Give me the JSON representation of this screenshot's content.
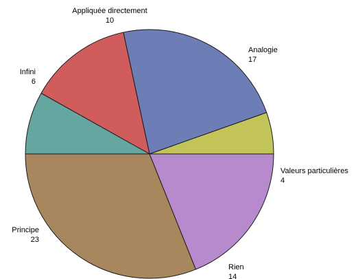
{
  "chart_data": {
    "type": "pie",
    "title": "",
    "start_angle_deg": 0,
    "direction": "counterclockwise",
    "slices": [
      {
        "label": "Valeurs particulières",
        "value": 4,
        "color": "#c2c45a"
      },
      {
        "label": "Analogie",
        "value": 17,
        "color": "#6d7db5"
      },
      {
        "label": "Appliquée directement",
        "value": 10,
        "color": "#d15c5c"
      },
      {
        "label": "Infini",
        "value": 6,
        "color": "#66a6a0"
      },
      {
        "label": "Principe",
        "value": 23,
        "color": "#a8875e"
      },
      {
        "label": "Rien",
        "value": 14,
        "color": "#b68acd"
      }
    ]
  }
}
